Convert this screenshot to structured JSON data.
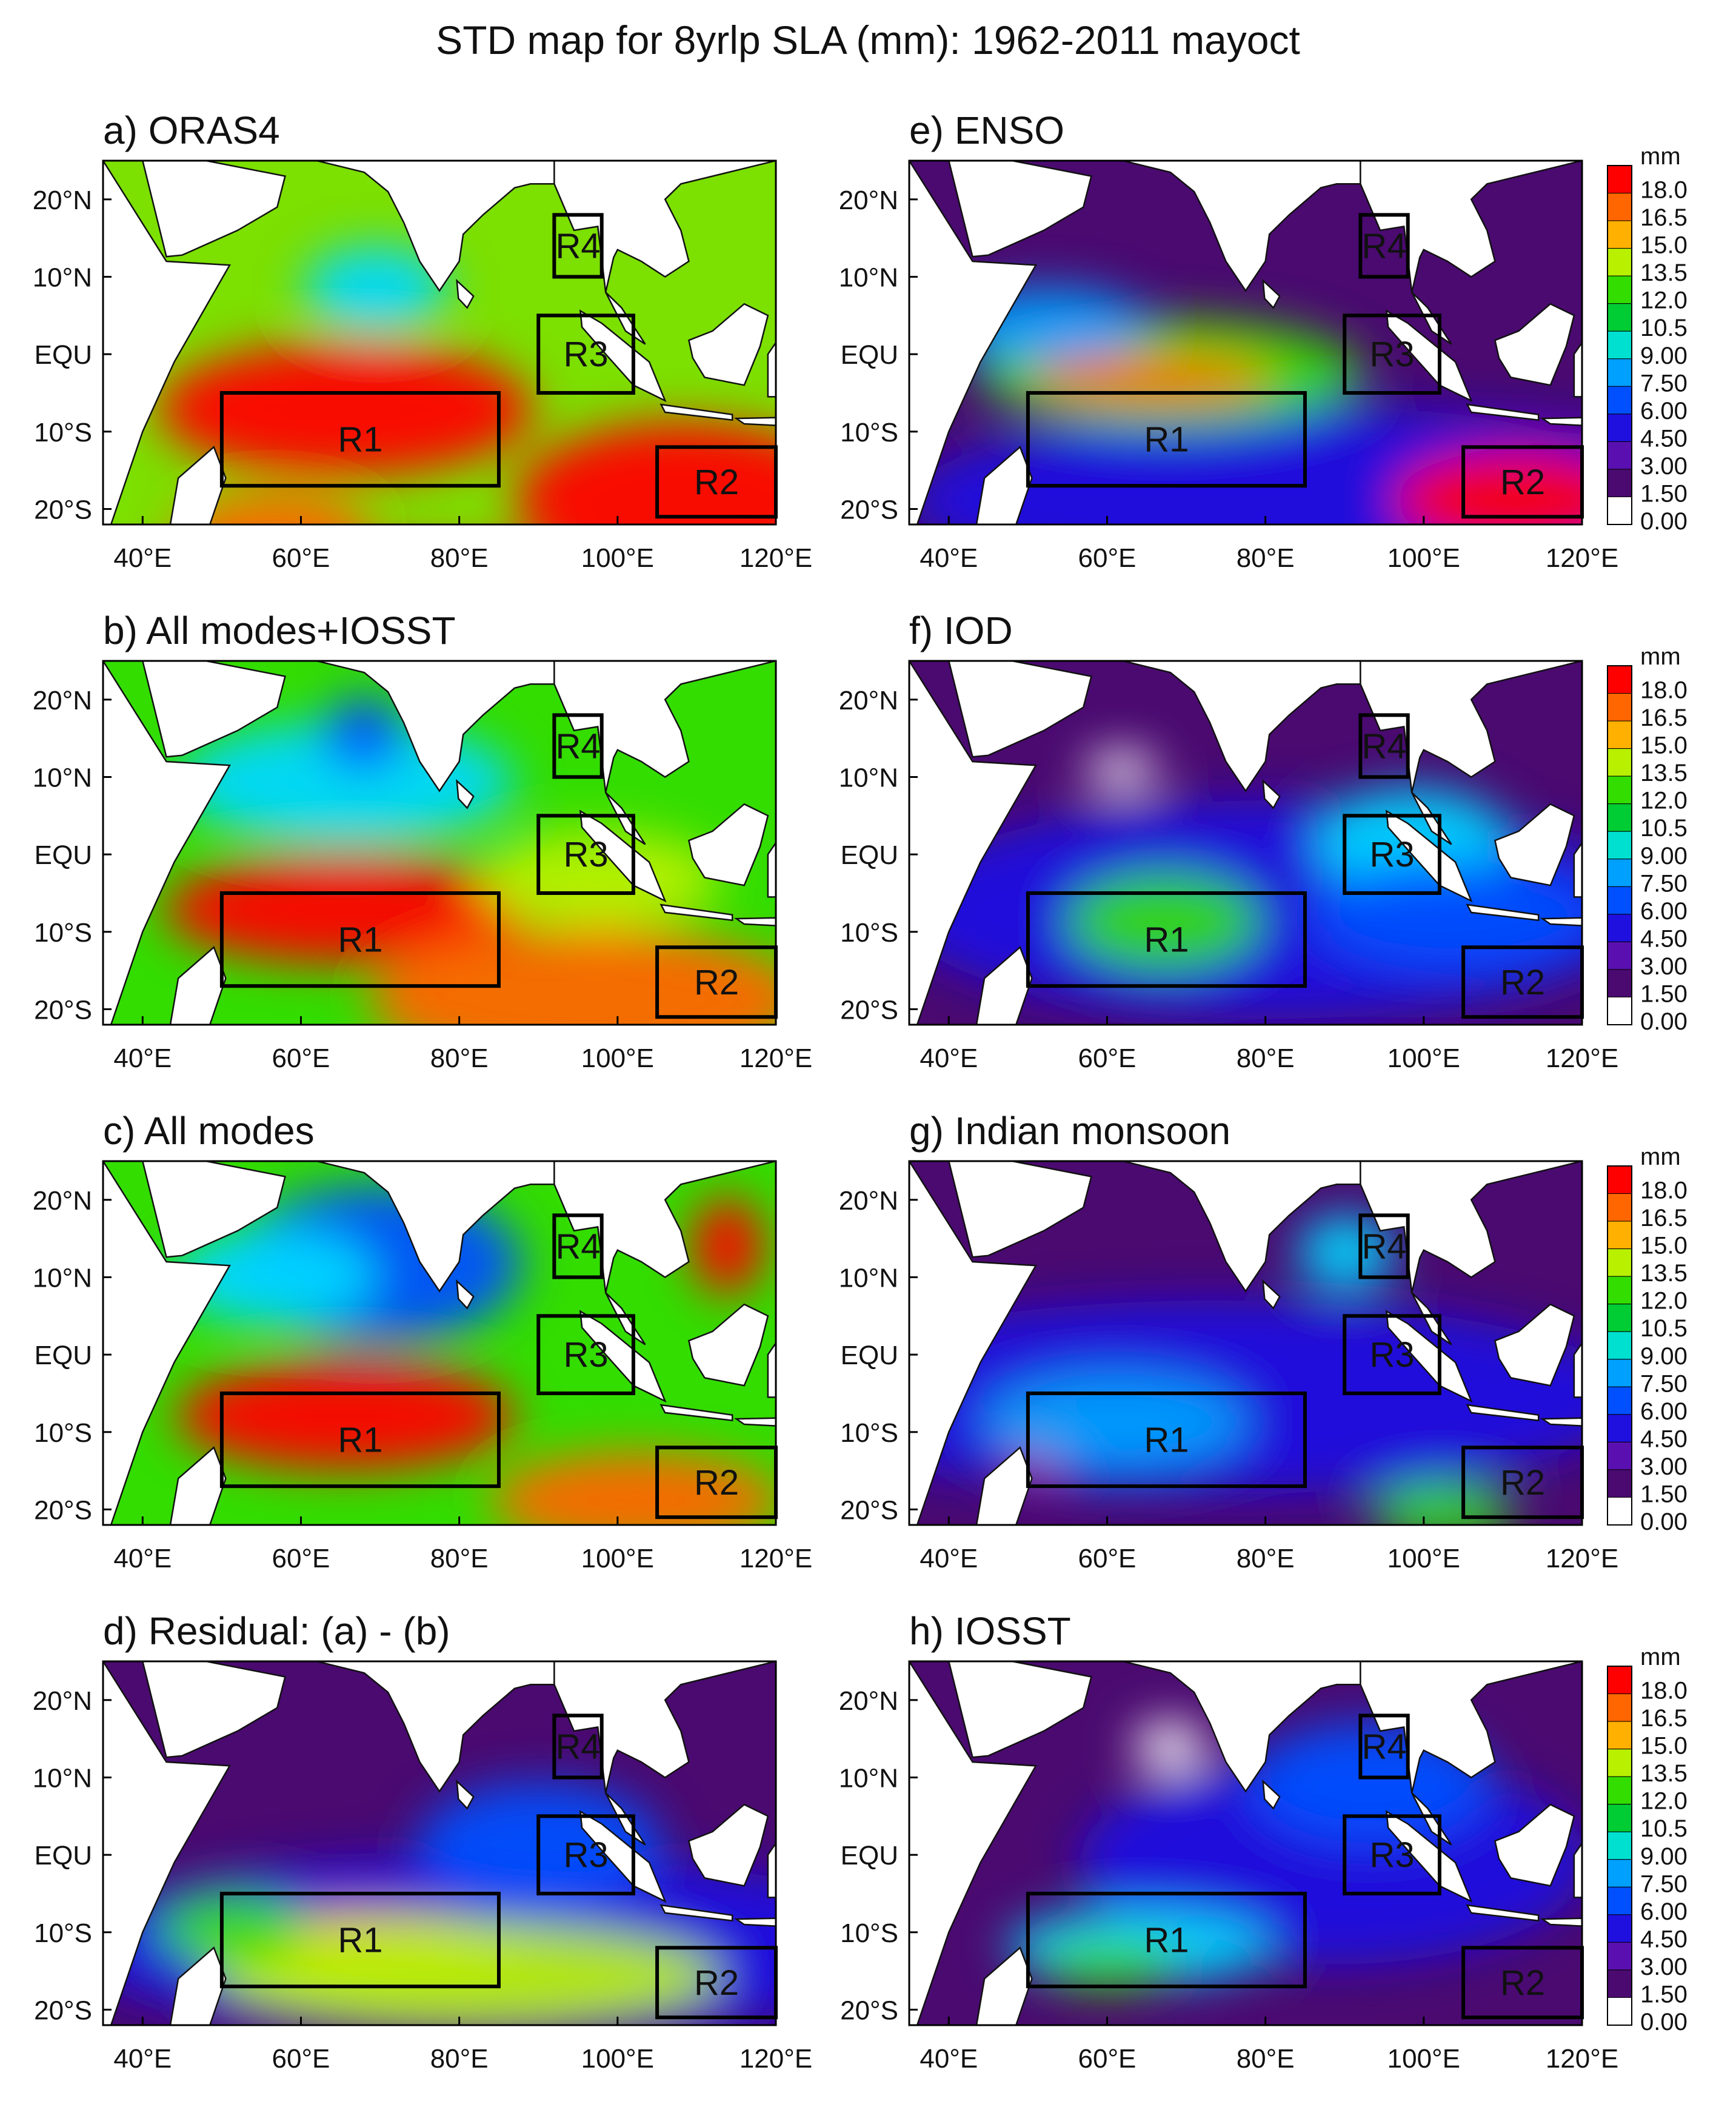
{
  "title": "STD map for 8yrlp SLA (mm): 1962-2011 mayoct",
  "lon_ticks": [
    "40°E",
    "60°E",
    "80°E",
    "100°E",
    "120°E"
  ],
  "lat_ticks": [
    "20°N",
    "10°N",
    "EQU",
    "10°S",
    "20°S"
  ],
  "colorbar": {
    "unit": "mm",
    "levels": [
      "18.0",
      "16.5",
      "15.0",
      "13.5",
      "12.0",
      "10.5",
      "9.00",
      "7.50",
      "6.00",
      "4.50",
      "3.00",
      "1.50",
      "0.00"
    ],
    "colors": [
      "#ff0000",
      "#ff6600",
      "#ffb000",
      "#b8f000",
      "#33dd00",
      "#00cc33",
      "#00e0d0",
      "#00a0ff",
      "#0050ff",
      "#2010e0",
      "#5a10b0",
      "#4a0a70",
      "#ffffff"
    ]
  },
  "regions": [
    "R1",
    "R2",
    "R3",
    "R4"
  ],
  "panels": [
    {
      "title": "a) ORAS4",
      "base": "#7ce000",
      "blobs": [
        [
          "#ff0000",
          400,
          410,
          310,
          110
        ],
        [
          "#ff0000",
          960,
          560,
          280,
          130
        ],
        [
          "#ff0000",
          460,
          750,
          560,
          110
        ],
        [
          "#00d8ff",
          450,
          210,
          120,
          70
        ],
        [
          "#ff6600",
          280,
          610,
          160,
          60
        ]
      ]
    },
    {
      "title": "e) ENSO",
      "base": "#4a0a70",
      "blobs": [
        [
          "#2010e0",
          700,
          560,
          700,
          150
        ],
        [
          "#33dd00",
          430,
          350,
          320,
          90
        ],
        [
          "#ff6600",
          400,
          360,
          200,
          40
        ],
        [
          "#ff0000",
          1000,
          560,
          200,
          80
        ],
        [
          "#00a0ff",
          230,
          270,
          160,
          60
        ]
      ]
    },
    {
      "title": "b) All modes+IOSST",
      "base": "#33dd00",
      "blobs": [
        [
          "#00d8ff",
          400,
          200,
          280,
          100
        ],
        [
          "#ff0000",
          400,
          410,
          300,
          90
        ],
        [
          "#ff6600",
          800,
          560,
          360,
          120
        ],
        [
          "#b8f000",
          820,
          360,
          200,
          80
        ],
        [
          "#0050ff",
          430,
          120,
          70,
          60
        ]
      ]
    },
    {
      "title": "f) IOD",
      "base": "#4a0a70",
      "blobs": [
        [
          "#2010e0",
          600,
          410,
          620,
          180
        ],
        [
          "#33dd00",
          420,
          430,
          160,
          80
        ],
        [
          "#00d8ff",
          830,
          300,
          160,
          90
        ],
        [
          "#ffffff",
          350,
          180,
          60,
          30
        ],
        [
          "#0050ff",
          900,
          420,
          240,
          90
        ]
      ]
    },
    {
      "title": "c) All modes",
      "base": "#33dd00",
      "blobs": [
        [
          "#0050ff",
          450,
          170,
          240,
          130
        ],
        [
          "#ff0000",
          400,
          420,
          280,
          90
        ],
        [
          "#ff6600",
          880,
          560,
          240,
          80
        ],
        [
          "#00d8ff",
          280,
          190,
          170,
          80
        ],
        [
          "#ff0000",
          1030,
          140,
          60,
          80
        ]
      ]
    },
    {
      "title": "g) Indian monsoon",
      "base": "#4a0a70",
      "blobs": [
        [
          "#2010e0",
          500,
          390,
          700,
          160
        ],
        [
          "#ff0000",
          220,
          460,
          60,
          60
        ],
        [
          "#00a0ff",
          340,
          430,
          220,
          80
        ],
        [
          "#33dd00",
          880,
          580,
          120,
          50
        ],
        [
          "#00d8ff",
          720,
          150,
          80,
          60
        ]
      ]
    },
    {
      "title": "d) Residual: (a) - (b)",
      "base": "#4a0a70",
      "blobs": [
        [
          "#2010e0",
          650,
          470,
          700,
          150
        ],
        [
          "#ffb000",
          420,
          470,
          280,
          60
        ],
        [
          "#b8f000",
          600,
          520,
          420,
          90
        ],
        [
          "#0050ff",
          720,
          300,
          200,
          100
        ],
        [
          "#33dd00",
          210,
          440,
          120,
          60
        ]
      ]
    },
    {
      "title": "h) IOSST",
      "base": "#4a0a70",
      "blobs": [
        [
          "#2010e0",
          700,
          330,
          420,
          170
        ],
        [
          "#00d8ff",
          380,
          470,
          220,
          60
        ],
        [
          "#0050ff",
          760,
          200,
          200,
          100
        ],
        [
          "#ffffff",
          430,
          140,
          60,
          40
        ],
        [
          "#33dd00",
          330,
          500,
          120,
          40
        ]
      ]
    }
  ]
}
